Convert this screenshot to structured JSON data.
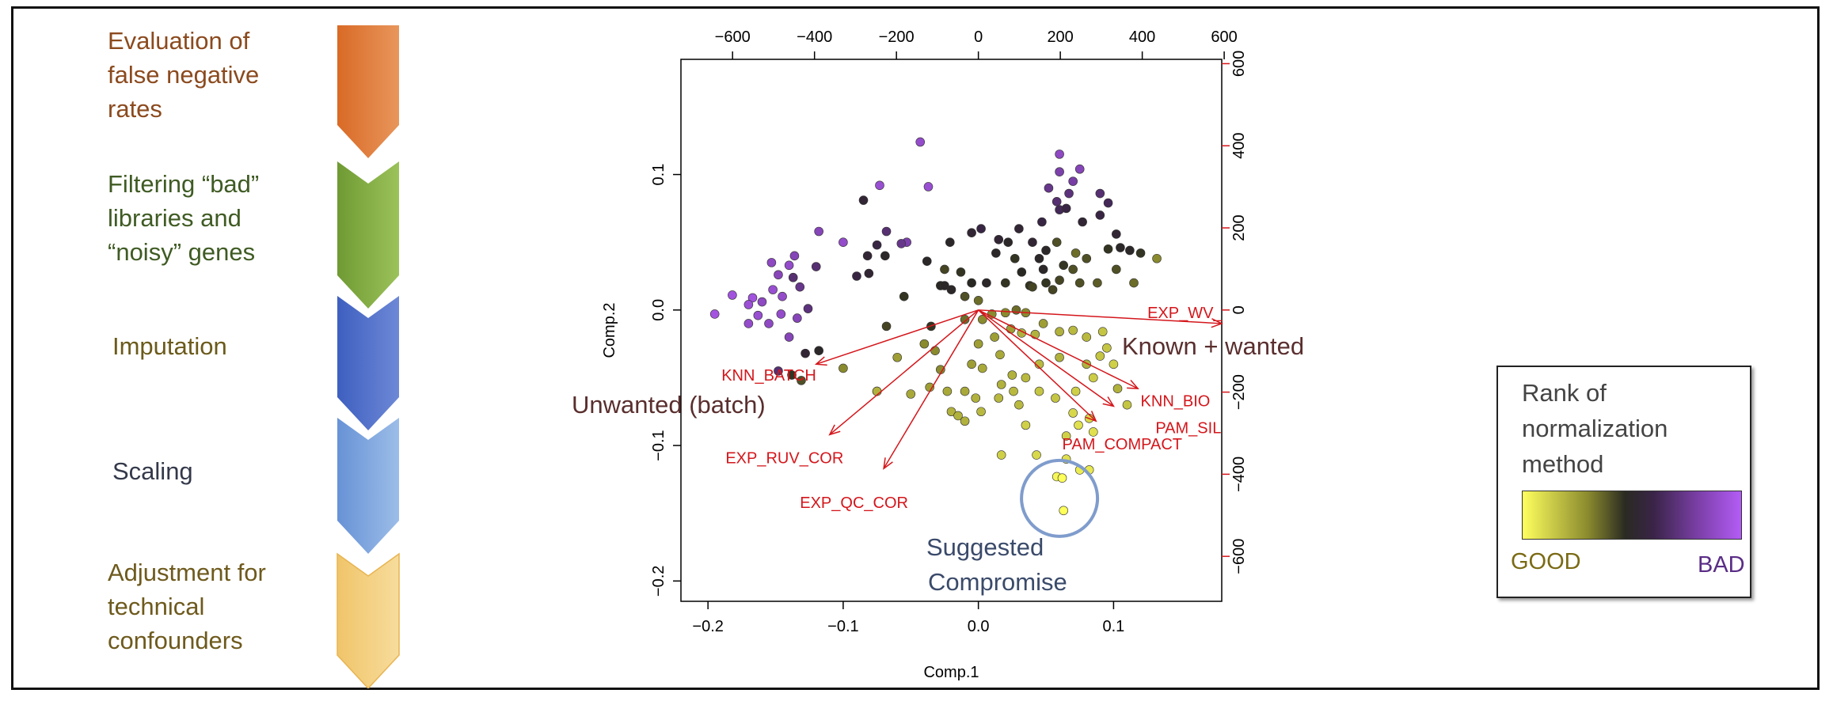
{
  "steps": [
    {
      "label": "Evaluation of\nfalse negative\nrates",
      "color": "#e07a3c"
    },
    {
      "label": "Filtering “bad”\nlibraries and\n“noisy” genes",
      "color": "#86b04a"
    },
    {
      "label": "Imputation",
      "color": "#4f6fcc"
    },
    {
      "label": "Scaling",
      "color": "#7ea6df"
    },
    {
      "label": "Adjustment for\ntechnical\nconfounders",
      "color": "#f3cf7f"
    }
  ],
  "chart_data": {
    "type": "scatter",
    "subtype": "biplot",
    "xlabel": "Comp.1",
    "ylabel": "Comp.2",
    "xlim": [
      -0.22,
      0.18
    ],
    "ylim": [
      -0.215,
      0.185
    ],
    "x_ticks": [
      -0.2,
      -0.1,
      0.0,
      0.1
    ],
    "y_ticks": [
      -0.2,
      -0.1,
      0.0,
      0.1
    ],
    "x_tick_labels": [
      "−0.2",
      "−0.1",
      "0.0",
      "0.1"
    ],
    "y_tick_labels": [
      "−0.2",
      "−0.1",
      "0.0",
      "0.1"
    ],
    "top_axis_ticks": [
      -600,
      -400,
      -200,
      0,
      200,
      400,
      600
    ],
    "top_axis_labels": [
      "−600",
      "−400",
      "−200",
      "0",
      "200",
      "400",
      "600"
    ],
    "right_axis_ticks": [
      -600,
      -400,
      -200,
      0,
      200,
      400,
      600
    ],
    "right_axis_labels": [
      "−600",
      "−400",
      "−200",
      "0",
      "200",
      "400",
      "600"
    ],
    "loading_scale": 3300,
    "loadings": [
      {
        "name": "EXP_WV_",
        "x": 0.18,
        "y": -0.01,
        "lx": 0.125,
        "ly": -0.006
      },
      {
        "name": "KNN_BATCH",
        "x": -0.12,
        "y": -0.04,
        "lx": -0.19,
        "ly": -0.052
      },
      {
        "name": "EXP_RUV_COR",
        "x": -0.11,
        "y": -0.092,
        "lx": -0.187,
        "ly": -0.113
      },
      {
        "name": "EXP_QC_COR",
        "x": -0.07,
        "y": -0.117,
        "lx": -0.132,
        "ly": -0.146
      },
      {
        "name": "KNN_BIO",
        "x": 0.118,
        "y": -0.058,
        "lx": 0.12,
        "ly": -0.071
      },
      {
        "name": "PAM_SIL",
        "x": 0.1,
        "y": -0.071,
        "lx": 0.131,
        "ly": -0.091
      },
      {
        "name": "PAM_COMPACT",
        "x": 0.087,
        "y": -0.082,
        "lx": 0.062,
        "ly": -0.103
      }
    ],
    "annotations": {
      "known_wanted": "Known + wanted",
      "unwanted": "Unwanted (batch)",
      "suggested": "Suggested\nCompromise"
    },
    "points_rank_note": "rank 0 = GOOD (yellow) ... 1 = BAD (purple)",
    "points": [
      [
        -0.043,
        0.124,
        0.9
      ],
      [
        -0.073,
        0.092,
        0.92
      ],
      [
        -0.037,
        0.091,
        0.92
      ],
      [
        -0.085,
        0.081,
        0.55
      ],
      [
        -0.118,
        0.058,
        0.85
      ],
      [
        -0.1,
        0.05,
        0.9
      ],
      [
        -0.068,
        0.058,
        0.7
      ],
      [
        -0.053,
        0.05,
        0.82
      ],
      [
        -0.075,
        0.048,
        0.6
      ],
      [
        -0.057,
        0.049,
        0.75
      ],
      [
        -0.082,
        0.04,
        0.55
      ],
      [
        -0.136,
        0.04,
        0.85
      ],
      [
        -0.12,
        0.032,
        0.7
      ],
      [
        -0.14,
        0.033,
        0.9
      ],
      [
        -0.153,
        0.035,
        0.88
      ],
      [
        -0.148,
        0.026,
        0.86
      ],
      [
        -0.137,
        0.024,
        0.7
      ],
      [
        -0.132,
        0.017,
        0.75
      ],
      [
        -0.182,
        0.011,
        0.95
      ],
      [
        -0.167,
        0.009,
        0.95
      ],
      [
        -0.152,
        0.015,
        0.92
      ],
      [
        -0.145,
        0.01,
        0.9
      ],
      [
        -0.16,
        0.006,
        0.88
      ],
      [
        -0.17,
        0.004,
        0.93
      ],
      [
        -0.195,
        -0.003,
        0.96
      ],
      [
        -0.163,
        -0.004,
        0.92
      ],
      [
        -0.146,
        -0.003,
        0.9
      ],
      [
        -0.126,
        0.001,
        0.72
      ],
      [
        -0.134,
        -0.006,
        0.85
      ],
      [
        -0.155,
        -0.01,
        0.88
      ],
      [
        -0.17,
        -0.01,
        0.9
      ],
      [
        -0.14,
        -0.02,
        0.85
      ],
      [
        -0.148,
        -0.045,
        0.7
      ],
      [
        -0.128,
        -0.032,
        0.55
      ],
      [
        -0.118,
        -0.03,
        0.5
      ],
      [
        -0.131,
        -0.052,
        0.4
      ],
      [
        -0.1,
        -0.043,
        0.3
      ],
      [
        -0.138,
        -0.048,
        0.45
      ],
      [
        -0.09,
        0.025,
        0.6
      ],
      [
        -0.081,
        0.027,
        0.55
      ],
      [
        -0.069,
        0.04,
        0.5
      ],
      [
        -0.068,
        -0.012,
        0.42
      ],
      [
        -0.055,
        0.01,
        0.45
      ],
      [
        -0.038,
        0.036,
        0.5
      ],
      [
        -0.028,
        0.018,
        0.48
      ],
      [
        -0.021,
        0.05,
        0.5
      ],
      [
        -0.005,
        0.057,
        0.55
      ],
      [
        0.002,
        0.06,
        0.6
      ],
      [
        0.015,
        0.052,
        0.55
      ],
      [
        0.03,
        0.06,
        0.55
      ],
      [
        0.047,
        0.065,
        0.6
      ],
      [
        0.06,
        0.074,
        0.65
      ],
      [
        0.052,
        0.09,
        0.75
      ],
      [
        0.06,
        0.102,
        0.82
      ],
      [
        0.06,
        0.115,
        0.88
      ],
      [
        0.07,
        0.095,
        0.8
      ],
      [
        0.075,
        0.104,
        0.85
      ],
      [
        0.067,
        0.086,
        0.72
      ],
      [
        0.058,
        0.08,
        0.7
      ],
      [
        0.065,
        0.075,
        0.6
      ],
      [
        0.077,
        0.065,
        0.55
      ],
      [
        0.09,
        0.07,
        0.6
      ],
      [
        0.09,
        0.086,
        0.7
      ],
      [
        0.096,
        0.079,
        0.65
      ],
      [
        0.102,
        0.056,
        0.55
      ],
      [
        0.112,
        0.044,
        0.5
      ],
      [
        0.105,
        0.046,
        0.5
      ],
      [
        0.096,
        0.045,
        0.45
      ],
      [
        0.12,
        0.042,
        0.45
      ],
      [
        0.132,
        0.038,
        0.3
      ],
      [
        0.08,
        0.038,
        0.4
      ],
      [
        0.072,
        0.042,
        0.35
      ],
      [
        0.058,
        0.05,
        0.4
      ],
      [
        0.05,
        0.044,
        0.5
      ],
      [
        0.04,
        0.05,
        0.55
      ],
      [
        0.045,
        0.038,
        0.5
      ],
      [
        0.027,
        0.038,
        0.45
      ],
      [
        0.022,
        0.05,
        0.5
      ],
      [
        0.013,
        0.042,
        0.5
      ],
      [
        -0.013,
        0.028,
        0.45
      ],
      [
        -0.025,
        0.03,
        0.42
      ],
      [
        -0.02,
        0.015,
        0.5
      ],
      [
        -0.005,
        0.02,
        0.48
      ],
      [
        0.006,
        0.02,
        0.5
      ],
      [
        0.02,
        0.02,
        0.45
      ],
      [
        0.038,
        0.018,
        0.45
      ],
      [
        0.05,
        0.02,
        0.45
      ],
      [
        0.06,
        0.022,
        0.42
      ],
      [
        0.075,
        0.02,
        0.4
      ],
      [
        0.088,
        0.02,
        0.38
      ],
      [
        0.102,
        0.03,
        0.4
      ],
      [
        0.115,
        0.02,
        0.35
      ],
      [
        0.07,
        0.03,
        0.4
      ],
      [
        0.063,
        0.033,
        0.45
      ],
      [
        0.048,
        0.03,
        0.5
      ],
      [
        0.032,
        0.028,
        0.48
      ],
      [
        0.04,
        0.017,
        0.42
      ],
      [
        0.055,
        0.015,
        0.42
      ],
      [
        -0.025,
        0.018,
        0.5
      ],
      [
        -0.01,
        0.01,
        0.4
      ],
      [
        0.0,
        0.007,
        0.35
      ],
      [
        0.01,
        -0.003,
        0.3
      ],
      [
        0.02,
        -0.002,
        0.3
      ],
      [
        0.028,
        0.0,
        0.35
      ],
      [
        0.035,
        -0.002,
        0.3
      ],
      [
        -0.01,
        -0.007,
        0.35
      ],
      [
        0.003,
        -0.007,
        0.3
      ],
      [
        -0.035,
        -0.012,
        0.45
      ],
      [
        -0.04,
        -0.025,
        0.3
      ],
      [
        -0.032,
        -0.03,
        0.3
      ],
      [
        -0.028,
        -0.044,
        0.3
      ],
      [
        -0.036,
        -0.057,
        0.25
      ],
      [
        -0.05,
        -0.062,
        0.22
      ],
      [
        -0.075,
        -0.06,
        0.2
      ],
      [
        -0.023,
        -0.06,
        0.22
      ],
      [
        -0.02,
        -0.075,
        0.2
      ],
      [
        -0.015,
        -0.078,
        0.2
      ],
      [
        -0.01,
        -0.082,
        0.2
      ],
      [
        -0.01,
        -0.06,
        0.22
      ],
      [
        -0.005,
        -0.04,
        0.25
      ],
      [
        0.012,
        -0.02,
        0.25
      ],
      [
        0.024,
        -0.014,
        0.25
      ],
      [
        0.032,
        -0.017,
        0.2
      ],
      [
        0.042,
        -0.018,
        0.2
      ],
      [
        0.048,
        -0.01,
        0.25
      ],
      [
        0.06,
        -0.016,
        0.2
      ],
      [
        0.07,
        -0.015,
        0.18
      ],
      [
        0.08,
        -0.02,
        0.18
      ],
      [
        0.08,
        -0.04,
        0.2
      ],
      [
        0.092,
        -0.016,
        0.15
      ],
      [
        0.095,
        -0.028,
        0.15
      ],
      [
        0.1,
        -0.04,
        0.12
      ],
      [
        0.11,
        -0.07,
        0.15
      ],
      [
        0.085,
        -0.05,
        0.13
      ],
      [
        0.072,
        -0.06,
        0.12
      ],
      [
        0.07,
        -0.076,
        0.1
      ],
      [
        0.082,
        -0.08,
        0.1
      ],
      [
        0.074,
        -0.085,
        0.08
      ],
      [
        0.085,
        -0.09,
        0.08
      ],
      [
        0.065,
        -0.093,
        0.12
      ],
      [
        0.057,
        -0.065,
        0.15
      ],
      [
        0.045,
        -0.06,
        0.15
      ],
      [
        0.045,
        -0.04,
        0.18
      ],
      [
        0.035,
        -0.05,
        0.18
      ],
      [
        0.025,
        -0.048,
        0.2
      ],
      [
        0.017,
        -0.055,
        0.2
      ],
      [
        0.015,
        -0.065,
        0.18
      ],
      [
        0.03,
        -0.07,
        0.18
      ],
      [
        0.035,
        -0.085,
        0.12
      ],
      [
        0.002,
        -0.075,
        0.18
      ],
      [
        -0.002,
        -0.065,
        0.2
      ],
      [
        -0.075,
        -0.06,
        0.2
      ],
      [
        0.017,
        -0.107,
        0.12
      ],
      [
        0.043,
        -0.107,
        0.1
      ],
      [
        0.065,
        -0.11,
        0.08
      ],
      [
        0.075,
        -0.118,
        0.05
      ],
      [
        0.082,
        -0.118,
        0.06
      ],
      [
        0.058,
        -0.123,
        0.02
      ],
      [
        0.062,
        -0.124,
        0.0
      ],
      [
        0.063,
        -0.148,
        0.0
      ],
      [
        0.09,
        -0.034,
        0.15
      ],
      [
        0.103,
        -0.058,
        0.2
      ],
      [
        -0.06,
        -0.035,
        0.25
      ],
      [
        0.06,
        -0.035,
        0.2
      ],
      [
        0.0,
        -0.025,
        0.25
      ],
      [
        0.003,
        -0.043,
        0.22
      ],
      [
        0.016,
        -0.033,
        0.22
      ],
      [
        0.026,
        -0.06,
        0.18
      ]
    ]
  }
}
